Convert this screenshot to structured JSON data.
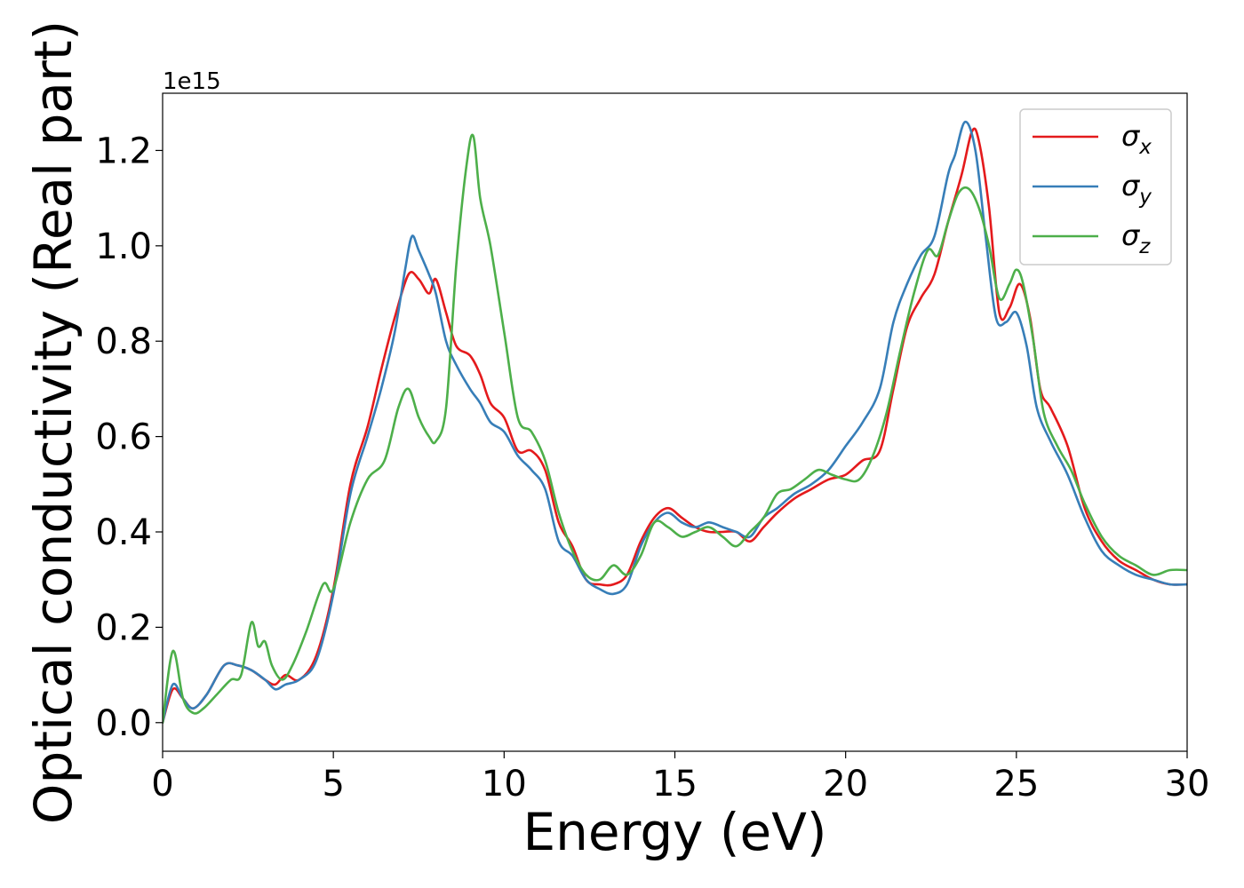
{
  "chart_data": {
    "type": "line",
    "xlabel": "Energy (eV)",
    "ylabel": "Optical conductivity (Real part)",
    "y_offset_text": "1e15",
    "xlim": [
      0,
      30
    ],
    "ylim": [
      -0.06,
      1.32
    ],
    "x_ticks": [
      0,
      5,
      10,
      15,
      20,
      25,
      30
    ],
    "x_tick_labels": [
      "0",
      "5",
      "10",
      "15",
      "20",
      "25",
      "30"
    ],
    "y_ticks": [
      0.0,
      0.2,
      0.4,
      0.6,
      0.8,
      1.0,
      1.2
    ],
    "y_tick_labels": [
      "0.0",
      "0.2",
      "0.4",
      "0.6",
      "0.8",
      "1.0",
      "1.2"
    ],
    "grid": false,
    "legend_position": "top-right",
    "series": [
      {
        "name": "σx",
        "legend_symbol": "σ",
        "legend_subscript": "x",
        "color": "#e41a1c",
        "x": [
          0,
          0.3,
          0.6,
          0.9,
          1.3,
          1.8,
          2.2,
          2.6,
          3.0,
          3.3,
          3.6,
          4.0,
          4.5,
          5.0,
          5.5,
          6.0,
          6.4,
          6.8,
          7.2,
          7.5,
          7.8,
          8.0,
          8.3,
          8.6,
          9.0,
          9.3,
          9.6,
          10.0,
          10.4,
          10.8,
          11.2,
          11.6,
          12.0,
          12.4,
          12.8,
          13.2,
          13.6,
          14.0,
          14.4,
          14.8,
          15.2,
          15.6,
          16.0,
          16.4,
          16.8,
          17.2,
          17.6,
          18.0,
          18.5,
          19.0,
          19.5,
          20.0,
          20.5,
          21.0,
          21.4,
          21.8,
          22.2,
          22.6,
          23.0,
          23.4,
          23.7,
          23.9,
          24.2,
          24.5,
          24.8,
          25.1,
          25.4,
          25.7,
          26.0,
          26.5,
          27.0,
          27.5,
          28.0,
          28.5,
          29.0,
          29.5,
          30.0
        ],
        "y": [
          0.0,
          0.07,
          0.05,
          0.03,
          0.06,
          0.12,
          0.12,
          0.11,
          0.09,
          0.08,
          0.1,
          0.09,
          0.14,
          0.28,
          0.5,
          0.62,
          0.74,
          0.85,
          0.94,
          0.93,
          0.9,
          0.93,
          0.86,
          0.79,
          0.77,
          0.73,
          0.67,
          0.64,
          0.57,
          0.57,
          0.53,
          0.42,
          0.37,
          0.3,
          0.29,
          0.29,
          0.31,
          0.38,
          0.43,
          0.45,
          0.43,
          0.41,
          0.4,
          0.4,
          0.4,
          0.38,
          0.41,
          0.44,
          0.47,
          0.49,
          0.51,
          0.52,
          0.55,
          0.57,
          0.7,
          0.83,
          0.89,
          0.94,
          1.05,
          1.15,
          1.24,
          1.22,
          1.08,
          0.86,
          0.87,
          0.92,
          0.85,
          0.7,
          0.66,
          0.58,
          0.45,
          0.38,
          0.34,
          0.32,
          0.3,
          0.29,
          0.29
        ]
      },
      {
        "name": "σy",
        "legend_symbol": "σ",
        "legend_subscript": "y",
        "color": "#377eb8",
        "x": [
          0,
          0.3,
          0.6,
          0.9,
          1.3,
          1.8,
          2.2,
          2.6,
          3.0,
          3.3,
          3.6,
          4.0,
          4.5,
          5.0,
          5.5,
          6.0,
          6.4,
          6.8,
          7.1,
          7.3,
          7.5,
          7.8,
          8.0,
          8.3,
          8.6,
          9.0,
          9.3,
          9.6,
          10.0,
          10.4,
          10.8,
          11.2,
          11.6,
          12.0,
          12.4,
          12.8,
          13.2,
          13.6,
          14.0,
          14.4,
          14.8,
          15.2,
          15.6,
          16.0,
          16.4,
          16.8,
          17.2,
          17.6,
          18.0,
          18.5,
          19.0,
          19.5,
          20.0,
          20.5,
          21.0,
          21.4,
          21.8,
          22.2,
          22.6,
          23.0,
          23.2,
          23.5,
          23.8,
          24.1,
          24.4,
          24.7,
          25.0,
          25.3,
          25.6,
          26.0,
          26.5,
          27.0,
          27.5,
          28.0,
          28.5,
          29.0,
          29.5,
          30.0
        ],
        "y": [
          0.0,
          0.08,
          0.05,
          0.03,
          0.06,
          0.12,
          0.12,
          0.11,
          0.09,
          0.07,
          0.08,
          0.09,
          0.13,
          0.27,
          0.48,
          0.6,
          0.7,
          0.82,
          0.95,
          1.02,
          0.99,
          0.94,
          0.9,
          0.8,
          0.75,
          0.7,
          0.67,
          0.63,
          0.61,
          0.56,
          0.53,
          0.49,
          0.38,
          0.35,
          0.3,
          0.28,
          0.27,
          0.29,
          0.37,
          0.42,
          0.44,
          0.42,
          0.41,
          0.42,
          0.41,
          0.4,
          0.39,
          0.43,
          0.45,
          0.48,
          0.5,
          0.53,
          0.58,
          0.63,
          0.7,
          0.84,
          0.92,
          0.98,
          1.02,
          1.15,
          1.19,
          1.26,
          1.2,
          1.02,
          0.85,
          0.84,
          0.86,
          0.79,
          0.66,
          0.59,
          0.52,
          0.43,
          0.36,
          0.33,
          0.31,
          0.3,
          0.29,
          0.29
        ]
      },
      {
        "name": "σz",
        "legend_symbol": "σ",
        "legend_subscript": "z",
        "color": "#4daf4a",
        "x": [
          0,
          0.3,
          0.6,
          0.9,
          1.2,
          1.6,
          2.0,
          2.3,
          2.6,
          2.8,
          3.0,
          3.2,
          3.5,
          3.8,
          4.2,
          4.7,
          5.0,
          5.5,
          6.0,
          6.5,
          6.9,
          7.2,
          7.5,
          7.8,
          8.0,
          8.3,
          8.6,
          8.9,
          9.1,
          9.3,
          9.6,
          10.0,
          10.4,
          10.8,
          11.2,
          11.6,
          12.0,
          12.4,
          12.8,
          13.2,
          13.6,
          14.0,
          14.4,
          14.8,
          15.2,
          15.6,
          16.0,
          16.4,
          16.8,
          17.2,
          17.6,
          18.0,
          18.4,
          18.8,
          19.2,
          19.6,
          20.0,
          20.4,
          20.8,
          21.2,
          21.6,
          22.0,
          22.4,
          22.7,
          23.0,
          23.3,
          23.6,
          23.9,
          24.2,
          24.5,
          24.8,
          25.0,
          25.2,
          25.5,
          25.8,
          26.2,
          26.6,
          27.0,
          27.5,
          28.0,
          28.5,
          29.0,
          29.5,
          30.0
        ],
        "y": [
          0.0,
          0.15,
          0.05,
          0.02,
          0.03,
          0.06,
          0.09,
          0.1,
          0.21,
          0.16,
          0.17,
          0.12,
          0.09,
          0.12,
          0.19,
          0.29,
          0.28,
          0.42,
          0.51,
          0.55,
          0.66,
          0.7,
          0.64,
          0.6,
          0.59,
          0.66,
          0.96,
          1.17,
          1.23,
          1.1,
          1.0,
          0.82,
          0.64,
          0.61,
          0.55,
          0.44,
          0.36,
          0.31,
          0.3,
          0.33,
          0.31,
          0.35,
          0.42,
          0.41,
          0.39,
          0.4,
          0.41,
          0.39,
          0.37,
          0.4,
          0.43,
          0.48,
          0.49,
          0.51,
          0.53,
          0.52,
          0.51,
          0.51,
          0.56,
          0.65,
          0.78,
          0.9,
          0.99,
          0.98,
          1.05,
          1.11,
          1.12,
          1.08,
          1.0,
          0.89,
          0.92,
          0.95,
          0.92,
          0.8,
          0.65,
          0.58,
          0.53,
          0.46,
          0.39,
          0.35,
          0.33,
          0.31,
          0.32,
          0.32
        ]
      }
    ]
  }
}
